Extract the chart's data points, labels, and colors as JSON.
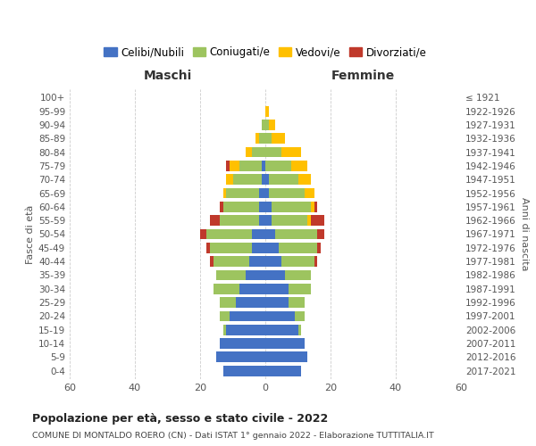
{
  "age_groups": [
    "0-4",
    "5-9",
    "10-14",
    "15-19",
    "20-24",
    "25-29",
    "30-34",
    "35-39",
    "40-44",
    "45-49",
    "50-54",
    "55-59",
    "60-64",
    "65-69",
    "70-74",
    "75-79",
    "80-84",
    "85-89",
    "90-94",
    "95-99",
    "100+"
  ],
  "birth_years": [
    "2017-2021",
    "2012-2016",
    "2007-2011",
    "2002-2006",
    "1997-2001",
    "1992-1996",
    "1987-1991",
    "1982-1986",
    "1977-1981",
    "1972-1976",
    "1967-1971",
    "1962-1966",
    "1957-1961",
    "1952-1956",
    "1947-1951",
    "1942-1946",
    "1937-1941",
    "1932-1936",
    "1927-1931",
    "1922-1926",
    "≤ 1921"
  ],
  "males": {
    "celibi": [
      13,
      15,
      14,
      12,
      11,
      9,
      8,
      6,
      5,
      4,
      4,
      2,
      2,
      2,
      1,
      1,
      0,
      0,
      0,
      0,
      0
    ],
    "coniugati": [
      0,
      0,
      0,
      1,
      3,
      5,
      8,
      9,
      11,
      13,
      14,
      12,
      11,
      10,
      9,
      7,
      4,
      2,
      1,
      0,
      0
    ],
    "vedovi": [
      0,
      0,
      0,
      0,
      0,
      0,
      0,
      0,
      0,
      0,
      0,
      0,
      0,
      1,
      2,
      3,
      2,
      1,
      0,
      0,
      0
    ],
    "divorziati": [
      0,
      0,
      0,
      0,
      0,
      0,
      0,
      0,
      1,
      1,
      2,
      3,
      1,
      0,
      0,
      1,
      0,
      0,
      0,
      0,
      0
    ]
  },
  "females": {
    "nubili": [
      11,
      13,
      12,
      10,
      9,
      7,
      7,
      6,
      5,
      4,
      3,
      2,
      2,
      1,
      1,
      0,
      0,
      0,
      0,
      0,
      0
    ],
    "coniugate": [
      0,
      0,
      0,
      1,
      3,
      5,
      7,
      8,
      10,
      12,
      13,
      11,
      12,
      11,
      9,
      8,
      5,
      2,
      1,
      0,
      0
    ],
    "vedove": [
      0,
      0,
      0,
      0,
      0,
      0,
      0,
      0,
      0,
      0,
      0,
      1,
      1,
      3,
      4,
      5,
      6,
      4,
      2,
      1,
      0
    ],
    "divorziate": [
      0,
      0,
      0,
      0,
      0,
      0,
      0,
      0,
      1,
      1,
      2,
      4,
      1,
      0,
      0,
      0,
      0,
      0,
      0,
      0,
      0
    ]
  },
  "colors": {
    "celibi": "#4472c4",
    "coniugati": "#9dc45f",
    "vedovi": "#ffc000",
    "divorziati": "#c0392b"
  },
  "title": "Popolazione per età, sesso e stato civile - 2022",
  "subtitle": "COMUNE DI MONTALDO ROERO (CN) - Dati ISTAT 1° gennaio 2022 - Elaborazione TUTTITALIA.IT",
  "xlabel_left": "Maschi",
  "xlabel_right": "Femmine",
  "ylabel": "Fasce di età",
  "ylabel_right": "Anni di nascita",
  "xlim": 60,
  "background_color": "#ffffff",
  "grid_color": "#cccccc"
}
